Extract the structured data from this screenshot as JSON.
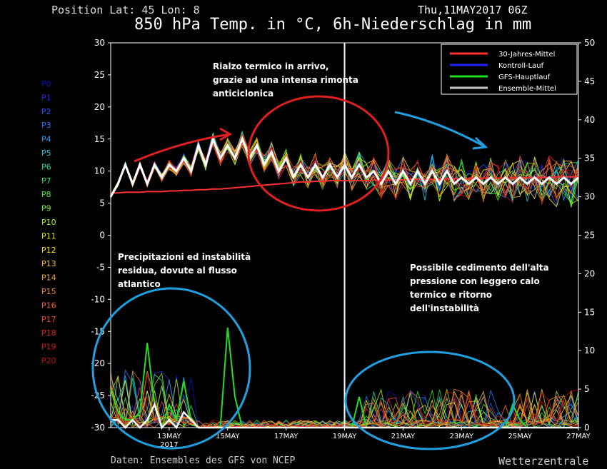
{
  "header": {
    "position": "Position  Lat: 45 Lon: 8",
    "datetime": "Thu,11MAY2017 06Z",
    "title": "850 hPa Temp. in °C, 6h-Niederschlag in mm"
  },
  "footer": {
    "source": "Daten: Ensembles des GFS von NCEP",
    "brand": "Wetterzentrale"
  },
  "annotations": {
    "warm": "Rialzo termico in arrivo, grazie ad una intensa rimonta anticiclonica",
    "precip": "Precipitazioni ed instabilità residua, dovute al flusso atlantico",
    "cooling": "Possibile cedimento dell'alta pressione con leggero calo termico e ritorno dell'instabilità"
  },
  "members": [
    "P0",
    "P1",
    "P2",
    "P3",
    "P4",
    "P5",
    "P6",
    "P7",
    "P8",
    "P9",
    "P10",
    "P11",
    "P12",
    "P13",
    "P14",
    "P15",
    "P16",
    "P17",
    "P18",
    "P19",
    "P20"
  ],
  "member_colors": [
    "#1010c0",
    "#2030e0",
    "#2050ff",
    "#2078ff",
    "#20a0ff",
    "#20c8e0",
    "#20e0a0",
    "#20e060",
    "#40f020",
    "#80f020",
    "#b0f000",
    "#e0f000",
    "#f8e020",
    "#f8c030",
    "#f8a030",
    "#f88030",
    "#f86030",
    "#f04030",
    "#e02828",
    "#d01818",
    "#c01010"
  ],
  "chart_data": {
    "type": "line",
    "xlabel": "",
    "x_ticks": [
      "13MAY",
      "15MAY",
      "17MAY",
      "19MAY",
      "21MAY",
      "23MAY",
      "25MAY",
      "27MAY"
    ],
    "x_year_label": "2017",
    "y_left_ticks": [
      30,
      25,
      20,
      15,
      10,
      5,
      0,
      -5,
      -10,
      -15,
      -20,
      -25,
      -30
    ],
    "y_left_range": [
      -30,
      30
    ],
    "y_right_ticks": [
      50,
      45,
      40,
      35,
      30,
      25,
      20,
      15,
      10,
      5,
      0
    ],
    "y_right_range": [
      0,
      50
    ],
    "x_range_days": [
      0,
      16
    ],
    "legend": [
      {
        "name": "30-Jahres-Mittel",
        "color": "#ff3030"
      },
      {
        "name": "Kontroll-Lauf",
        "color": "#2020ff"
      },
      {
        "name": "GFS-Hauptlauf",
        "color": "#20e020"
      },
      {
        "name": "Ensemble-Mittel",
        "color": "#c8c8c8"
      }
    ],
    "legend_position": "top-right",
    "grid": false,
    "series_temp": {
      "ensemble_mean": [
        6,
        8,
        11,
        8,
        11,
        8,
        11,
        9,
        11,
        10,
        12,
        10,
        14,
        11,
        15,
        12,
        14,
        12,
        15,
        12,
        14,
        11,
        13,
        10,
        12,
        9,
        11,
        9,
        11,
        9,
        11,
        9,
        11,
        9,
        11,
        9,
        10,
        8,
        10,
        8,
        10,
        8,
        10,
        8,
        10,
        8,
        10,
        8,
        9,
        8,
        9,
        8,
        9,
        8,
        9,
        8,
        9,
        8,
        9,
        8,
        9,
        8,
        9,
        8,
        9
      ],
      "climatology": [
        6.6,
        6.6,
        6.7,
        6.7,
        6.7,
        6.8,
        6.8,
        6.8,
        6.9,
        6.9,
        7.0,
        7.0,
        7.1,
        7.1,
        7.2,
        7.2,
        7.3,
        7.4,
        7.5,
        7.6,
        7.7,
        7.8,
        7.9,
        8.0,
        8.1,
        8.2,
        8.3,
        8.3,
        8.4,
        8.4,
        8.5,
        8.5,
        8.5,
        8.5,
        8.5,
        8.5,
        8.6,
        8.6,
        8.6,
        8.6,
        8.6,
        8.7,
        8.7,
        8.7,
        8.7,
        8.7,
        8.8,
        8.8,
        8.8,
        8.8,
        8.8,
        8.9,
        8.9,
        8.9,
        8.9,
        8.9,
        9.0,
        9.0,
        9.0,
        9.0,
        9.0,
        9.1,
        9.1,
        9.1,
        9.1
      ]
    },
    "series_precip": {
      "ensemble_mean": [
        1,
        1,
        0,
        1,
        0,
        1,
        3,
        0,
        1,
        0,
        2,
        1,
        0,
        0,
        0,
        0,
        0,
        0,
        0,
        0,
        0,
        0,
        0,
        0,
        0,
        0,
        0,
        0,
        0,
        0,
        0,
        0,
        0,
        0,
        0,
        0,
        0,
        0,
        0,
        0,
        0,
        0,
        0,
        0,
        0,
        0,
        0,
        0,
        0,
        0,
        0,
        0,
        0,
        0,
        0,
        0,
        0,
        0,
        0,
        0,
        0,
        0,
        0,
        0,
        0
      ],
      "gfs_main": [
        5,
        2,
        1,
        1,
        2,
        11,
        3,
        0,
        3,
        1,
        6,
        1,
        0,
        0,
        0,
        0,
        13,
        4,
        0,
        0,
        0,
        0,
        0,
        0,
        0,
        0,
        0,
        0,
        0,
        0,
        0,
        0,
        0,
        0,
        4,
        0,
        0,
        0,
        0,
        0,
        0,
        0,
        0,
        0,
        0,
        0,
        0,
        0,
        0,
        0,
        0,
        0,
        0,
        0,
        0,
        3,
        1,
        0,
        0,
        0,
        0,
        0,
        0,
        0,
        0
      ]
    }
  }
}
